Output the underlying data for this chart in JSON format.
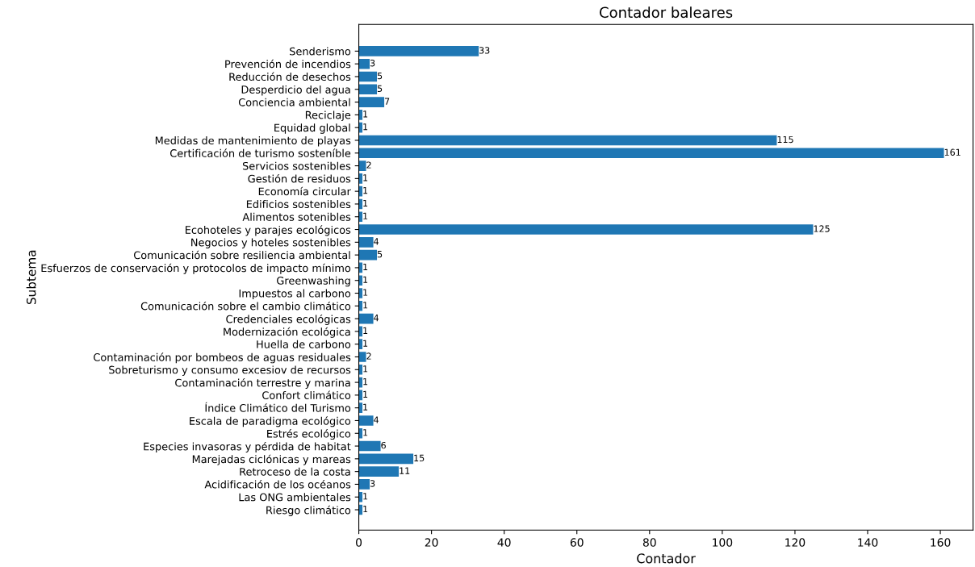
{
  "chart_data": {
    "type": "bar",
    "orientation": "horizontal",
    "title": "Contador baleares",
    "xlabel": "Contador",
    "ylabel": "Subtema",
    "categories": [
      "Senderismo",
      "Prevención de incendios",
      "Reducción de desechos",
      "Desperdicio del agua",
      "Conciencia ambiental",
      "Reciclaje",
      "Equidad global",
      "Medidas de mantenimiento de playas",
      "Certificación de turismo sosteníble",
      "Servicios sostenibles",
      "Gestión de residuos",
      "Economía circular",
      "Edificios sostenibles",
      "Alimentos sotenibles",
      "Ecohoteles y parajes ecológicos",
      "Negocios y hoteles sostenibles",
      "Comunicación sobre resiliencia ambiental",
      "Esfuerzos de conservación y protocolos de impacto mínimo",
      "Greenwashing",
      "Impuestos al carbono",
      "Comunicación sobre el cambio climático",
      "Credenciales ecológicas",
      "Modernización ecológica",
      "Huella de carbono",
      "Contaminación por bombeos de aguas residuales",
      "Sobreturismo y consumo excesiov de recursos",
      "Contaminación terrestre y marina",
      "Confort climático",
      "Índice Climático del Turismo",
      "Escala de paradigma ecológico",
      "Estrés ecológico",
      "Especies invasoras y pérdida de habitat",
      "Marejadas ciclónicas y mareas",
      "Retroceso de la costa",
      "Acidificación de los océanos",
      "Las ONG ambientales",
      "Riesgo climático"
    ],
    "values": [
      33,
      3,
      5,
      5,
      7,
      1,
      1,
      115,
      161,
      2,
      1,
      1,
      1,
      1,
      125,
      4,
      5,
      1,
      1,
      1,
      1,
      4,
      1,
      1,
      2,
      1,
      1,
      1,
      1,
      4,
      1,
      6,
      15,
      11,
      3,
      1,
      1
    ],
    "color": "#1f77b4",
    "data_labels": true,
    "xlim": [
      0,
      169
    ],
    "xticks": [
      0,
      20,
      40,
      60,
      80,
      100,
      120,
      140,
      160
    ],
    "grid": false
  }
}
